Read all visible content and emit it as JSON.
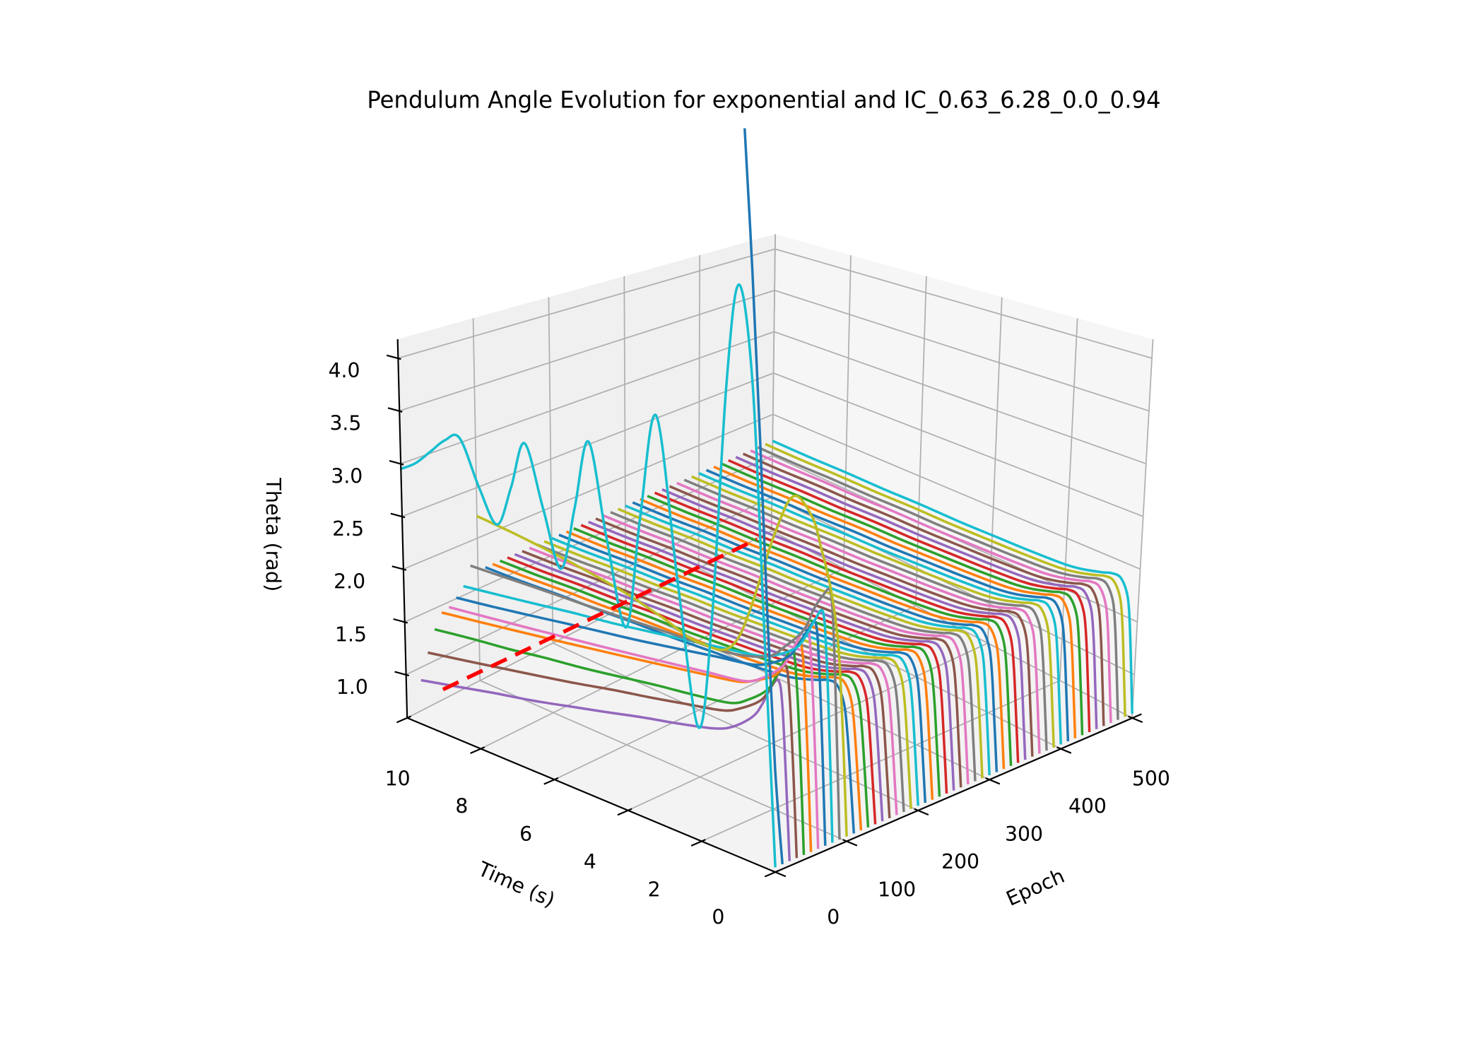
{
  "chart_data": {
    "type": "line3d",
    "title": "Pendulum Angle Evolution for exponential and IC_0.63_6.28_0.0_0.94",
    "xlabel": "Time (s)",
    "ylabel": "Epoch",
    "zlabel": "Theta (rad)",
    "xlim": [
      0,
      10
    ],
    "ylim": [
      0,
      500
    ],
    "zlim": [
      0.59,
      4.18
    ],
    "x_ticks": [
      "0",
      "2",
      "4",
      "6",
      "8",
      "10"
    ],
    "x_tick_values": [
      0,
      2,
      4,
      6,
      8,
      10
    ],
    "y_ticks": [
      "0",
      "100",
      "200",
      "300",
      "400",
      "500"
    ],
    "y_tick_values": [
      0,
      100,
      200,
      300,
      400,
      500
    ],
    "z_ticks": [
      "1.0",
      "1.5",
      "2.0",
      "2.5",
      "3.0",
      "3.5",
      "4.0"
    ],
    "z_tick_values": [
      1.0,
      1.5,
      2.0,
      2.5,
      3.0,
      3.5,
      4.0
    ],
    "grid": true,
    "palette": [
      "#1f77b4",
      "#ff7f0e",
      "#2ca02c",
      "#d62728",
      "#9467bd",
      "#8c564b",
      "#e377c2",
      "#7f7f7f",
      "#bcbd22",
      "#17becf"
    ],
    "t_grid": [
      0,
      0.1,
      0.2,
      0.3,
      0.5,
      0.75,
      1,
      1.5,
      2,
      3,
      4,
      5,
      6,
      7,
      8,
      9,
      10
    ],
    "early_series": [
      {
        "epoch": 20,
        "color": "#9467bd",
        "theta": [
          0.63,
          1.3,
          1.9,
          2.1,
          2.03,
          1.85,
          1.72,
          1.58,
          1.5,
          1.42,
          1.35,
          1.27,
          1.19,
          1.11,
          1.04,
          0.96,
          0.88
        ]
      },
      {
        "epoch": 30,
        "color": "#8c564b",
        "theta": [
          0.63,
          1.35,
          1.95,
          2.2,
          2.12,
          1.95,
          1.83,
          1.71,
          1.63,
          1.565,
          1.5,
          1.44,
          1.37,
          1.305,
          1.24,
          1.175,
          1.11
        ]
      },
      {
        "epoch": 40,
        "color": "#2ca02c",
        "theta": [
          0.63,
          1.4,
          2.0,
          2.3,
          2.23,
          2.05,
          1.9,
          1.76,
          1.67,
          1.62,
          1.58,
          1.53,
          1.48,
          1.44,
          1.39,
          1.35,
          1.3
        ]
      },
      {
        "epoch": 50,
        "color": "#ff7f0e",
        "theta": [
          0.63,
          1.4,
          2.05,
          2.35,
          2.27,
          2.12,
          2.0,
          1.9,
          1.83,
          1.78,
          1.73,
          1.68,
          1.63,
          1.58,
          1.53,
          1.48,
          1.43
        ]
      },
      {
        "epoch": 60,
        "color": "#e377c2",
        "theta": [
          0.63,
          1.45,
          2.1,
          2.45,
          2.38,
          2.2,
          2.05,
          1.9,
          1.81,
          1.765,
          1.72,
          1.675,
          1.63,
          1.585,
          1.54,
          1.495,
          1.45
        ]
      },
      {
        "epoch": 70,
        "color": "#1f77b4",
        "theta": [
          0.63,
          1.45,
          2.15,
          2.48,
          2.4,
          2.25,
          2.12,
          2.0,
          1.93,
          1.88,
          1.825,
          1.77,
          1.72,
          1.67,
          1.615,
          1.56,
          1.51
        ]
      },
      {
        "epoch": 80,
        "color": "#17becf",
        "theta": [
          0.63,
          1.5,
          2.2,
          2.55,
          2.47,
          2.3,
          2.17,
          2.05,
          1.98,
          1.93,
          1.88,
          1.83,
          1.78,
          1.74,
          1.69,
          1.64,
          1.59
        ]
      },
      {
        "epoch": 90,
        "color": "#7f7f7f",
        "theta": [
          0.63,
          1.5,
          2.3,
          2.7,
          2.65,
          2.5,
          2.3,
          2.1,
          1.95,
          1.86,
          1.845,
          1.83,
          1.815,
          1.8,
          1.79,
          1.775,
          1.76
        ]
      },
      {
        "epoch": 100,
        "color": "#bcbd22",
        "theta": [
          0.63,
          1.3,
          1.9,
          2.3,
          2.7,
          3.0,
          3.25,
          3.38,
          3.0,
          1.95,
          1.8,
          1.9,
          2.0,
          2.07,
          2.13,
          2.18,
          2.22
        ]
      }
    ],
    "oscillating_series": {
      "epoch": 0,
      "color": "#17becf",
      "t": [
        0,
        0.3,
        0.6,
        0.96,
        1.3,
        1.7,
        2.07,
        2.6,
        3.15,
        3.6,
        4.0,
        4.5,
        4.96,
        5.35,
        5.74,
        6.2,
        6.67,
        7.05,
        7.44,
        7.9,
        8.4,
        8.8,
        9.2,
        9.6,
        10
      ],
      "theta": [
        0.63,
        2.6,
        4.6,
        5.4,
        4.5,
        2.5,
        1.55,
        2.7,
        4.11,
        3.2,
        2.19,
        2.9,
        3.72,
        3.1,
        2.51,
        3.0,
        3.54,
        3.1,
        2.72,
        3.0,
        3.41,
        3.35,
        3.2,
        3.05,
        2.95
      ]
    },
    "diverging_series": {
      "epoch": 10,
      "color": "#1f77b4",
      "t": [
        0,
        0.2,
        0.4,
        0.6,
        0.8,
        1.0
      ],
      "theta": [
        0.63,
        1.4,
        2.6,
        4.1,
        5.5,
        6.7
      ]
    },
    "converged_series": {
      "epochs": [
        110,
        120,
        130,
        140,
        150,
        160,
        170,
        180,
        190,
        200,
        210,
        220,
        230,
        240,
        250,
        260,
        270,
        280,
        290,
        300,
        310,
        320,
        330,
        340,
        350,
        360,
        370,
        380,
        390,
        400,
        410,
        420,
        430,
        440,
        450,
        460,
        470,
        480,
        490,
        500
      ],
      "theta": [
        0.63,
        1.05,
        1.45,
        1.7,
        1.84,
        1.85,
        1.82,
        1.77,
        1.74,
        1.72,
        1.71,
        1.7,
        1.7,
        1.69,
        1.69,
        1.68,
        1.68
      ]
    },
    "reference_line": {
      "color": "#ff0000",
      "style": "dashed",
      "t": 9,
      "epoch": [
        0,
        430
      ],
      "theta": [
        1.0,
        1.0
      ]
    }
  }
}
